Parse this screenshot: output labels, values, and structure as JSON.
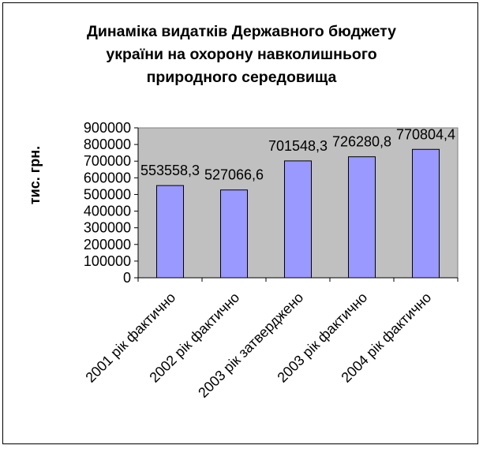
{
  "chart_data": {
    "type": "bar",
    "title_lines": [
      "Динаміка видатків Державного бюджету",
      "україни на охорону навколишнього",
      "природного середовища"
    ],
    "ylabel": "тис. грн.",
    "xlabel": "",
    "categories": [
      "2001 рік фактично",
      "2002 рік фактично",
      "2003 рік затверджено",
      "2003 рік фактично",
      "2004 рік фактично"
    ],
    "values": [
      553558.3,
      527066.6,
      701548.3,
      726280.8,
      770804.4
    ],
    "value_labels": [
      "553558,3",
      "527066,6",
      "701548,3",
      "726280,8",
      "770804,4"
    ],
    "ylim": [
      0,
      900000
    ],
    "yticks": [
      0,
      100000,
      200000,
      300000,
      400000,
      500000,
      600000,
      700000,
      800000,
      900000
    ],
    "ytick_labels": [
      "0",
      "100000",
      "200000",
      "300000",
      "400000",
      "500000",
      "600000",
      "700000",
      "800000",
      "900000"
    ],
    "grid": false,
    "colors": {
      "bar_fill": "#9999ff",
      "bar_stroke": "#000000",
      "plot_bg": "#c0c0c0",
      "page_bg": "#ffffff"
    }
  }
}
